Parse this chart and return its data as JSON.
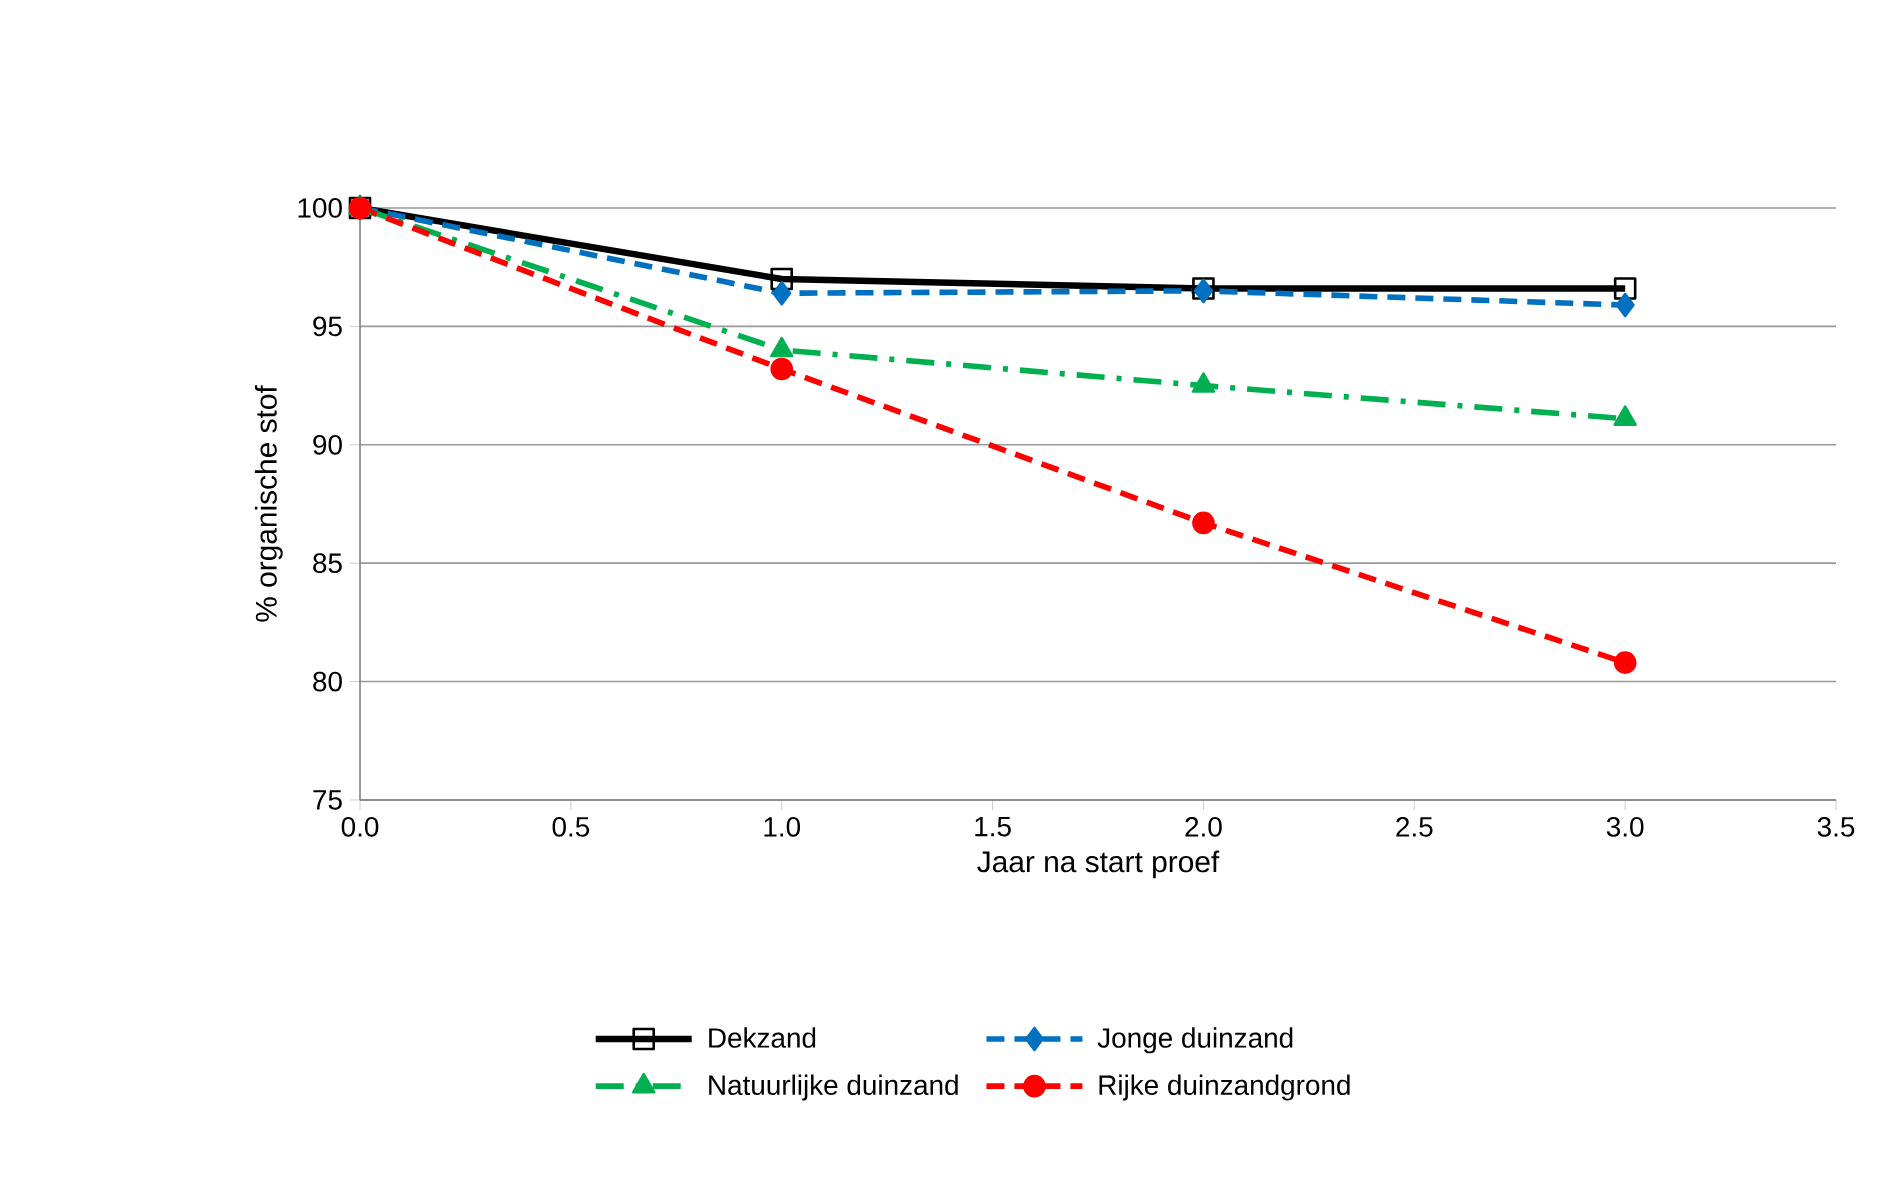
{
  "chart_data": {
    "type": "line",
    "xlabel": "Jaar na start proef",
    "ylabel": "% organische stof",
    "x": [
      0,
      1,
      2,
      3
    ],
    "xlim": [
      0,
      3.5
    ],
    "xticks": [
      {
        "value": 0,
        "label": "0.0"
      },
      {
        "value": 0.5,
        "label": "0.5"
      },
      {
        "value": 1,
        "label": "1.0"
      },
      {
        "value": 1.5,
        "label": "1.5"
      },
      {
        "value": 2,
        "label": "2.0"
      },
      {
        "value": 2.5,
        "label": "2.5"
      },
      {
        "value": 3,
        "label": "3.0"
      },
      {
        "value": 3.5,
        "label": "3.5"
      }
    ],
    "ylim": [
      75,
      100
    ],
    "yticks": [
      75,
      80,
      85,
      90,
      95,
      100
    ],
    "grid": "y",
    "legend": "bottom",
    "series": [
      {
        "name": "Dekzand",
        "color": "#000000",
        "values": [
          100,
          97.0,
          96.6,
          96.6
        ],
        "marker": "square",
        "line_style": "solid"
      },
      {
        "name": "Jonge duinzand",
        "color": "#0070c0",
        "values": [
          100,
          96.4,
          96.5,
          95.9
        ],
        "marker": "diamond",
        "line_style": "dashed"
      },
      {
        "name": "Natuurlijke duinzand",
        "color": "#00b050",
        "values": [
          100,
          94.0,
          92.5,
          91.1
        ],
        "marker": "triangle",
        "line_style": "dashdot"
      },
      {
        "name": "Rijke duinzandgrond",
        "color": "#ff0000",
        "values": [
          100,
          93.2,
          86.7,
          80.8
        ],
        "marker": "circle",
        "line_style": "dashed"
      }
    ]
  }
}
